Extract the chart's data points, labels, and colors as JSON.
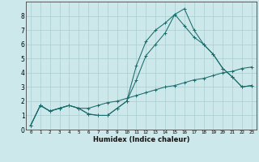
{
  "xlabel": "Humidex (Indice chaleur)",
  "background_color": "#cce8ea",
  "grid_color": "#aacdd0",
  "line_color": "#1a6b6b",
  "xlim": [
    -0.5,
    23.5
  ],
  "ylim": [
    0,
    9
  ],
  "xticks": [
    0,
    1,
    2,
    3,
    4,
    5,
    6,
    7,
    8,
    9,
    10,
    11,
    12,
    13,
    14,
    15,
    16,
    17,
    18,
    19,
    20,
    21,
    22,
    23
  ],
  "yticks": [
    0,
    1,
    2,
    3,
    4,
    5,
    6,
    7,
    8
  ],
  "series1_x": [
    0,
    1,
    2,
    3,
    4,
    5,
    6,
    7,
    8,
    9,
    10,
    11,
    12,
    13,
    14,
    15,
    16,
    17,
    18,
    19,
    20,
    21,
    22,
    23
  ],
  "series1_y": [
    0.3,
    1.7,
    1.3,
    1.5,
    1.7,
    1.5,
    1.1,
    1.0,
    1.0,
    1.5,
    2.0,
    4.5,
    6.2,
    7.0,
    7.5,
    8.1,
    8.5,
    7.0,
    6.0,
    5.3,
    4.3,
    3.7,
    3.0,
    3.1
  ],
  "series2_x": [
    0,
    1,
    2,
    3,
    4,
    5,
    6,
    7,
    8,
    9,
    10,
    11,
    12,
    13,
    14,
    15,
    16,
    17,
    18,
    19,
    20,
    21,
    22,
    23
  ],
  "series2_y": [
    0.3,
    1.7,
    1.3,
    1.5,
    1.7,
    1.5,
    1.1,
    1.0,
    1.0,
    1.5,
    2.0,
    3.5,
    5.2,
    6.0,
    6.8,
    8.1,
    7.3,
    6.5,
    6.0,
    5.3,
    4.3,
    3.7,
    3.0,
    3.1
  ],
  "series3_x": [
    0,
    1,
    2,
    3,
    4,
    5,
    6,
    7,
    8,
    9,
    10,
    11,
    12,
    13,
    14,
    15,
    16,
    17,
    18,
    19,
    20,
    21,
    22,
    23
  ],
  "series3_y": [
    0.3,
    1.7,
    1.3,
    1.5,
    1.7,
    1.5,
    1.5,
    1.7,
    1.9,
    2.0,
    2.2,
    2.4,
    2.6,
    2.8,
    3.0,
    3.1,
    3.3,
    3.5,
    3.6,
    3.8,
    4.0,
    4.1,
    4.3,
    4.4
  ]
}
